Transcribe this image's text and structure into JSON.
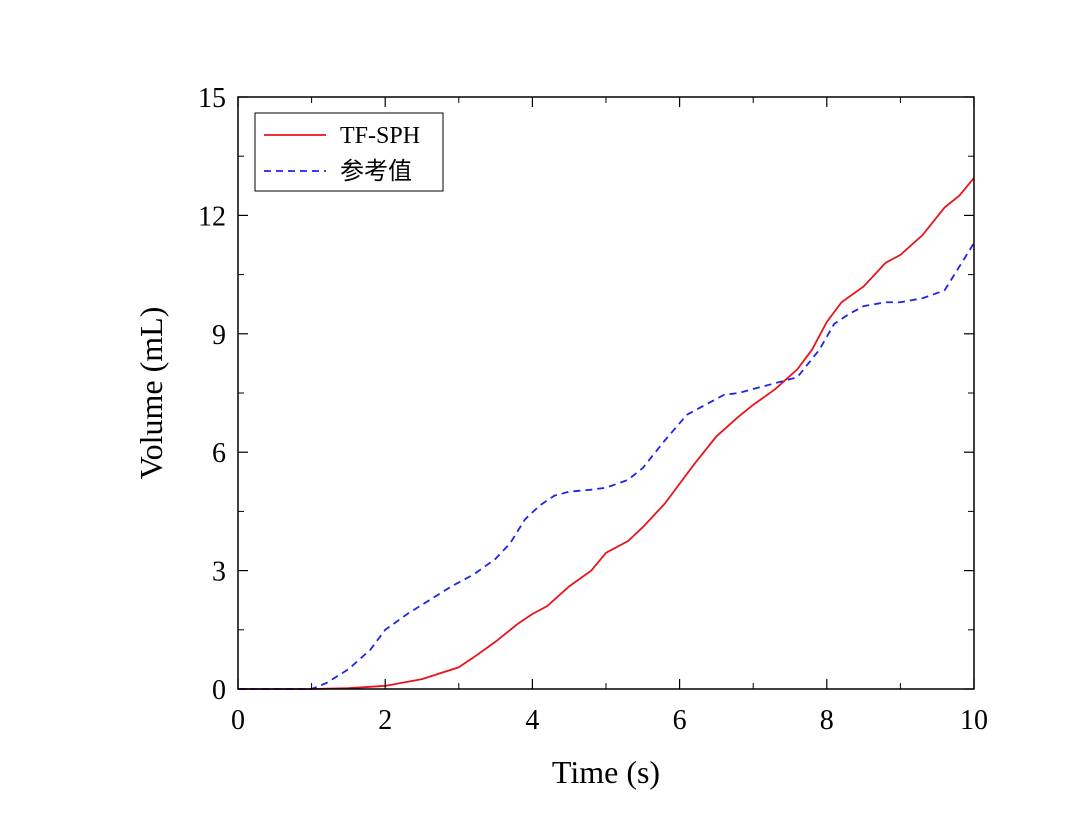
{
  "chart_data": {
    "type": "line",
    "title": "",
    "xlabel": "Time (s)",
    "ylabel": "Volume (mL)",
    "xlim": [
      0,
      10
    ],
    "ylim": [
      0,
      15
    ],
    "xticks": [
      0,
      2,
      4,
      6,
      8,
      10
    ],
    "yticks": [
      0,
      3,
      6,
      9,
      12,
      15
    ],
    "grid": false,
    "legend_position": "top-left",
    "series": [
      {
        "name": "TF-SPH",
        "color": "#e8141c",
        "style": "solid",
        "x": [
          0,
          1.0,
          1.5,
          2.0,
          2.5,
          3.0,
          3.2,
          3.5,
          3.8,
          4.0,
          4.2,
          4.5,
          4.8,
          5.0,
          5.3,
          5.5,
          5.8,
          6.0,
          6.2,
          6.5,
          6.8,
          7.0,
          7.3,
          7.6,
          7.8,
          8.0,
          8.2,
          8.5,
          8.8,
          9.0,
          9.3,
          9.6,
          9.8,
          10.0
        ],
        "y": [
          0,
          0,
          0.02,
          0.08,
          0.25,
          0.55,
          0.8,
          1.2,
          1.65,
          1.9,
          2.1,
          2.6,
          3.0,
          3.45,
          3.75,
          4.1,
          4.7,
          5.2,
          5.7,
          6.4,
          6.9,
          7.2,
          7.6,
          8.1,
          8.6,
          9.3,
          9.8,
          10.2,
          10.8,
          11.0,
          11.5,
          12.2,
          12.5,
          12.95
        ]
      },
      {
        "name": "参考值",
        "color": "#2222ee",
        "style": "dashed",
        "x": [
          0,
          1.0,
          1.2,
          1.5,
          1.8,
          2.0,
          2.3,
          2.6,
          2.9,
          3.2,
          3.5,
          3.7,
          3.9,
          4.1,
          4.3,
          4.5,
          4.8,
          5.0,
          5.3,
          5.5,
          5.8,
          6.1,
          6.3,
          6.6,
          6.8,
          7.0,
          7.3,
          7.6,
          7.9,
          8.1,
          8.3,
          8.5,
          8.8,
          9.0,
          9.3,
          9.6,
          9.8,
          10.0
        ],
        "y": [
          0,
          0,
          0.15,
          0.5,
          1.0,
          1.5,
          1.9,
          2.25,
          2.6,
          2.9,
          3.3,
          3.7,
          4.3,
          4.65,
          4.9,
          5.0,
          5.05,
          5.1,
          5.3,
          5.6,
          6.3,
          6.95,
          7.15,
          7.45,
          7.5,
          7.6,
          7.75,
          7.9,
          8.6,
          9.25,
          9.5,
          9.7,
          9.8,
          9.8,
          9.9,
          10.1,
          10.7,
          11.3
        ]
      }
    ]
  }
}
